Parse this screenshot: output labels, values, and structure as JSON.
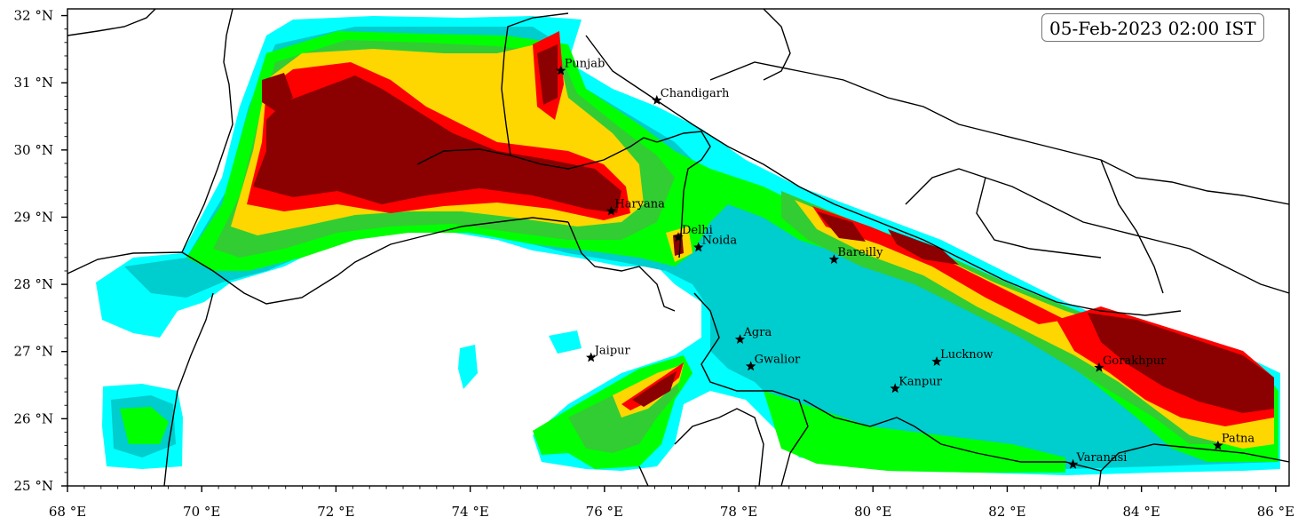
{
  "map": {
    "timestamp": "05-Feb-2023 02:00 IST",
    "lon_range": [
      68,
      86.2
    ],
    "lat_range": [
      25,
      32.1
    ],
    "x_ticks": [
      "68 °E",
      "70 °E",
      "72 °E",
      "74 °E",
      "76 °E",
      "78 °E",
      "80 °E",
      "82 °E",
      "84 °E",
      "86 °E"
    ],
    "y_ticks": [
      "25 °N",
      "26 °N",
      "27 °N",
      "28 °N",
      "29 °N",
      "30 °N",
      "31 °N",
      "32 °N"
    ],
    "fill_colors": [
      "#00ffff",
      "#00cdcd",
      "#00ff00",
      "#32cd32",
      "#ffd700",
      "#ff0000",
      "#8b0000"
    ],
    "cities": [
      {
        "name": "Punjab",
        "lon": 75.35,
        "lat": 31.18
      },
      {
        "name": "Chandigarh",
        "lon": 76.78,
        "lat": 30.74
      },
      {
        "name": "Haryana",
        "lon": 76.1,
        "lat": 29.09
      },
      {
        "name": "Delhi",
        "lon": 77.1,
        "lat": 28.7
      },
      {
        "name": "Noida",
        "lon": 77.4,
        "lat": 28.55
      },
      {
        "name": "Bareilly",
        "lon": 79.42,
        "lat": 28.37
      },
      {
        "name": "Jaipur",
        "lon": 75.8,
        "lat": 26.91
      },
      {
        "name": "Agra",
        "lon": 78.02,
        "lat": 27.18
      },
      {
        "name": "Gwalior",
        "lon": 78.18,
        "lat": 26.78
      },
      {
        "name": "Lucknow",
        "lon": 80.95,
        "lat": 26.85
      },
      {
        "name": "Kanpur",
        "lon": 80.33,
        "lat": 26.45
      },
      {
        "name": "Gorakhpur",
        "lon": 83.37,
        "lat": 26.76
      },
      {
        "name": "Patna",
        "lon": 85.14,
        "lat": 25.6
      },
      {
        "name": "Varanasi",
        "lon": 82.98,
        "lat": 25.32
      }
    ]
  }
}
